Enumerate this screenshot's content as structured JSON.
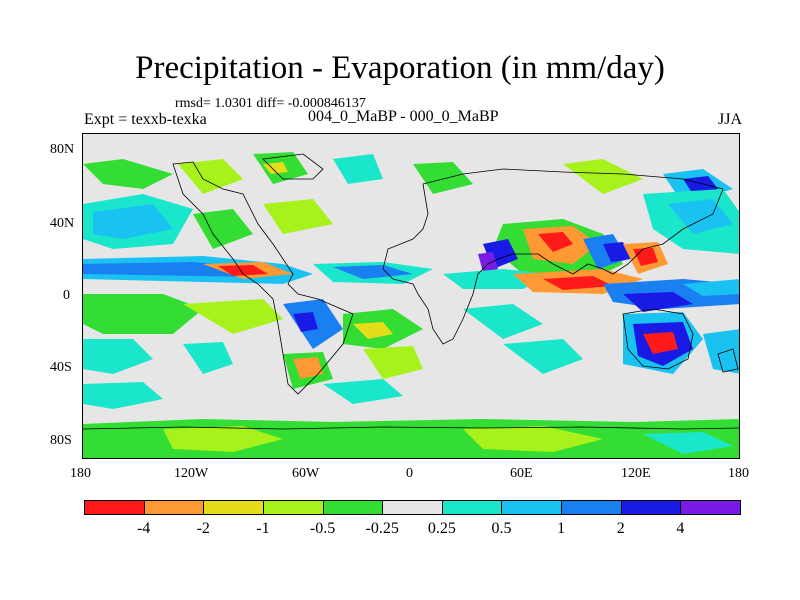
{
  "title": "Precipitation - Evaporation (in mm/day)",
  "stats_text": "rmsd= 1.0301 diff= -0.000846137",
  "experiment_label": "Expt = texxb-texka",
  "comparison_label": "004_0_MaBP - 000_0_MaBP",
  "season": "JJA",
  "y_axis_labels": [
    "80N",
    "40N",
    "0",
    "40S",
    "80S"
  ],
  "x_axis_labels": [
    "180",
    "120W",
    "60W",
    "0",
    "60E",
    "120E",
    "180"
  ],
  "colorbar": {
    "colors": [
      "#ff1a1a",
      "#ff9933",
      "#e6dd1a",
      "#a6f21a",
      "#33dd33",
      "#e6e6e6",
      "#1ae6cc",
      "#1ac2f2",
      "#1a80f2",
      "#1a1ae6",
      "#7a1ae6"
    ],
    "labels": [
      "-4",
      "-2",
      "-1",
      "-0.5",
      "-0.25",
      "0.25",
      "0.5",
      "1",
      "2",
      "4"
    ]
  }
}
